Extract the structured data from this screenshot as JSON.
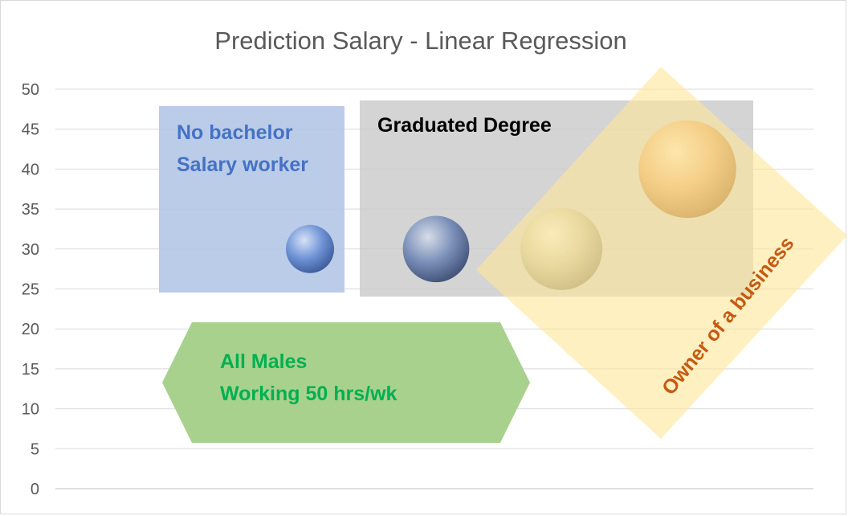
{
  "chart_data": {
    "type": "bubble",
    "title": "Prediction Salary - Linear Regression",
    "ylim": [
      0,
      50
    ],
    "yticks": [
      0,
      5,
      10,
      15,
      20,
      25,
      30,
      35,
      40,
      45,
      50
    ],
    "grid": true,
    "points": [
      {
        "y": 30,
        "size": 1.0,
        "color": "#6f93d6"
      },
      {
        "y": 30,
        "size": 1.9,
        "color": "#7a8fb8"
      },
      {
        "y": 30,
        "size": 2.9,
        "color": "#c9c5a8"
      },
      {
        "y": 40,
        "size": 4.1,
        "color": "#e3aa6a"
      }
    ],
    "annotations": {
      "no_bachelor": {
        "line1": "No bachelor",
        "line2": "Salary worker",
        "color": "#4472c4",
        "fill": "#b4c7e7"
      },
      "graduated": {
        "text": "Graduated Degree",
        "color": "#000000",
        "fill": "#c9c9c9"
      },
      "males": {
        "line1": "All Males",
        "line2": "Working 50 hrs/wk",
        "color": "#00b050",
        "fill": "#a9d18e"
      },
      "owner": {
        "text": "Owner of a business",
        "color": "#c55a11",
        "fill": "#ffe699"
      }
    }
  }
}
